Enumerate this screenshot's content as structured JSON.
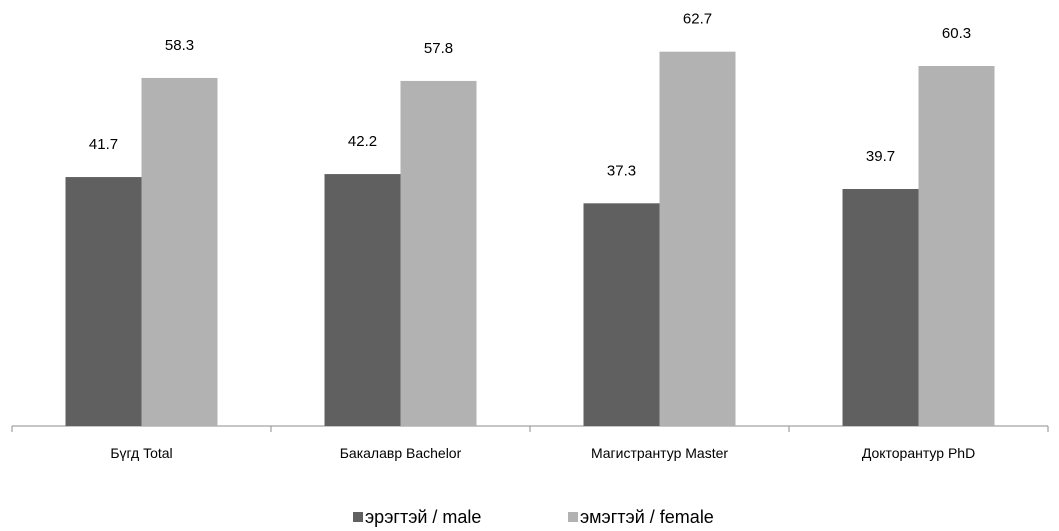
{
  "chart_data": {
    "type": "bar",
    "title": "",
    "xlabel": "",
    "ylabel": "",
    "categories": [
      "Бүгд Total",
      "Бакалавр Bachelor",
      "Магистрантур Master",
      "Докторантур PhD"
    ],
    "series": [
      {
        "name": "эрэгтэй / male",
        "values": [
          41.7,
          42.2,
          37.3,
          39.7
        ],
        "color": "#606060"
      },
      {
        "name": "эмэгтэй / female",
        "values": [
          58.3,
          57.8,
          62.7,
          60.3
        ],
        "color": "#b2b2b2"
      }
    ],
    "ylim": [
      0,
      70
    ],
    "grid": false,
    "legend": "bottom-center",
    "data_labels": true
  }
}
